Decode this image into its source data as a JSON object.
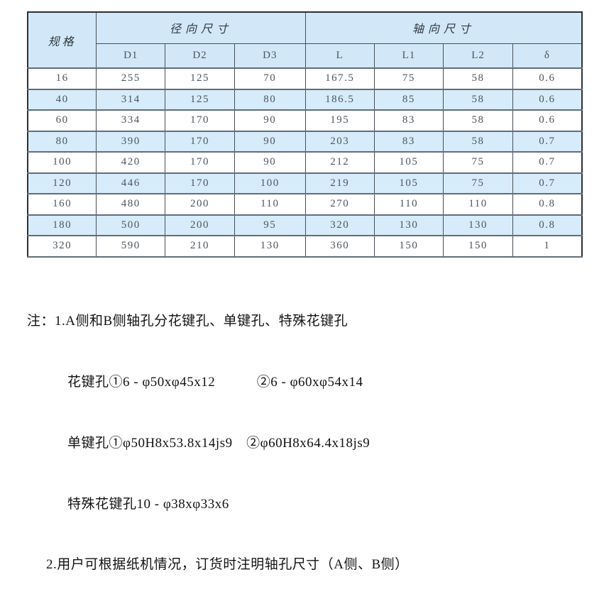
{
  "table": {
    "spec_label": "规格",
    "radial_group_label": "径向尺寸",
    "axial_group_label": "轴向尺寸",
    "columns": [
      "D1",
      "D2",
      "D3",
      "L",
      "L1",
      "L2",
      "δ"
    ],
    "rows": [
      [
        "16",
        "255",
        "125",
        "70",
        "167.5",
        "75",
        "58",
        "0.6"
      ],
      [
        "40",
        "314",
        "125",
        "80",
        "186.5",
        "85",
        "58",
        "0.6"
      ],
      [
        "60",
        "334",
        "170",
        "90",
        "195",
        "83",
        "58",
        "0.6"
      ],
      [
        "80",
        "390",
        "170",
        "90",
        "203",
        "83",
        "58",
        "0.7"
      ],
      [
        "100",
        "420",
        "170",
        "90",
        "212",
        "105",
        "75",
        "0.7"
      ],
      [
        "120",
        "446",
        "170",
        "100",
        "219",
        "105",
        "75",
        "0.7"
      ],
      [
        "160",
        "480",
        "200",
        "110",
        "270",
        "110",
        "110",
        "0.8"
      ],
      [
        "180",
        "500",
        "200",
        "95",
        "320",
        "130",
        "130",
        "0.8"
      ],
      [
        "320",
        "590",
        "210",
        "130",
        "360",
        "150",
        "150",
        "1"
      ]
    ]
  },
  "notes": {
    "prefix": "注：",
    "lines": [
      "1.A侧和B侧轴孔分花键孔、单键孔、特殊花键孔",
      "花键孔①6 - φ50xφ45x12　　　②6 - φ60xφ54x14",
      "单键孔①φ50H8x53.8x14js9　②φ60H8x64.4x18js9",
      "特殊花键孔10 - φ38xφ33x6",
      "2.用户可根据纸机情况，订货时注明轴孔尺寸（A侧、B侧）"
    ]
  },
  "colors": {
    "header_bg": "#d2e8f8",
    "alt_row_bg": "#d7ecfa",
    "cell_text": "#4c555e",
    "border_dark": "#2a3036"
  }
}
